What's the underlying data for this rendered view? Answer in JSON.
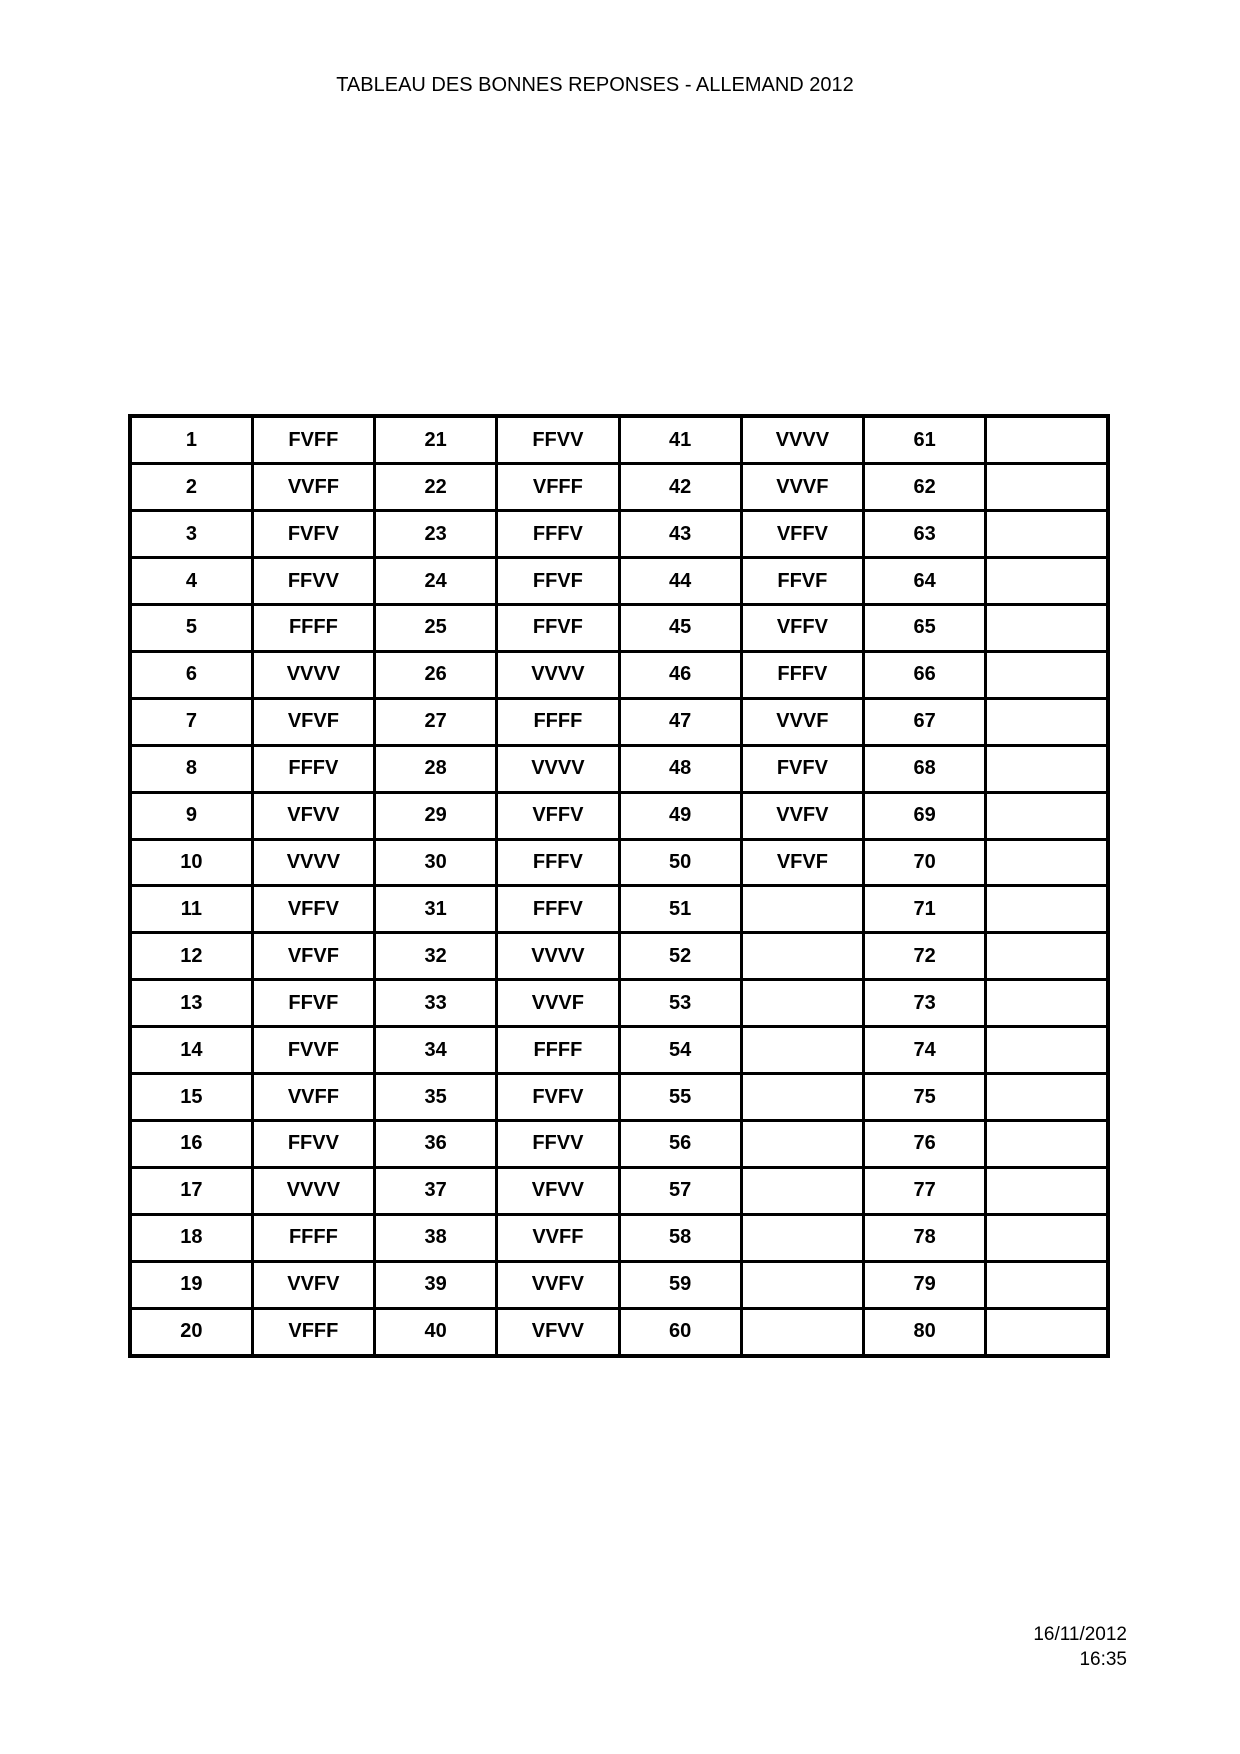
{
  "page": {
    "title": "TABLEAU DES BONNES REPONSES - ALLEMAND 2012"
  },
  "table": {
    "rows": [
      [
        "1",
        "FVFF",
        "21",
        "FFVV",
        "41",
        "VVVV",
        "61",
        ""
      ],
      [
        "2",
        "VVFF",
        "22",
        "VFFF",
        "42",
        "VVVF",
        "62",
        ""
      ],
      [
        "3",
        "FVFV",
        "23",
        "FFFV",
        "43",
        "VFFV",
        "63",
        ""
      ],
      [
        "4",
        "FFVV",
        "24",
        "FFVF",
        "44",
        "FFVF",
        "64",
        ""
      ],
      [
        "5",
        "FFFF",
        "25",
        "FFVF",
        "45",
        "VFFV",
        "65",
        ""
      ],
      [
        "6",
        "VVVV",
        "26",
        "VVVV",
        "46",
        "FFFV",
        "66",
        ""
      ],
      [
        "7",
        "VFVF",
        "27",
        "FFFF",
        "47",
        "VVVF",
        "67",
        ""
      ],
      [
        "8",
        "FFFV",
        "28",
        "VVVV",
        "48",
        "FVFV",
        "68",
        ""
      ],
      [
        "9",
        "VFVV",
        "29",
        "VFFV",
        "49",
        "VVFV",
        "69",
        ""
      ],
      [
        "10",
        "VVVV",
        "30",
        "FFFV",
        "50",
        "VFVF",
        "70",
        ""
      ],
      [
        "11",
        "VFFV",
        "31",
        "FFFV",
        "51",
        "",
        "71",
        ""
      ],
      [
        "12",
        "VFVF",
        "32",
        "VVVV",
        "52",
        "",
        "72",
        ""
      ],
      [
        "13",
        "FFVF",
        "33",
        "VVVF",
        "53",
        "",
        "73",
        ""
      ],
      [
        "14",
        "FVVF",
        "34",
        "FFFF",
        "54",
        "",
        "74",
        ""
      ],
      [
        "15",
        "VVFF",
        "35",
        "FVFV",
        "55",
        "",
        "75",
        ""
      ],
      [
        "16",
        "FFVV",
        "36",
        "FFVV",
        "56",
        "",
        "76",
        ""
      ],
      [
        "17",
        "VVVV",
        "37",
        "VFVV",
        "57",
        "",
        "77",
        ""
      ],
      [
        "18",
        "FFFF",
        "38",
        "VVFF",
        "58",
        "",
        "78",
        ""
      ],
      [
        "19",
        "VVFV",
        "39",
        "VVFV",
        "59",
        "",
        "79",
        ""
      ],
      [
        "20",
        "VFFF",
        "40",
        "VFVV",
        "60",
        "",
        "80",
        ""
      ]
    ]
  },
  "footer": {
    "date": "16/11/2012",
    "time": "16:35"
  }
}
